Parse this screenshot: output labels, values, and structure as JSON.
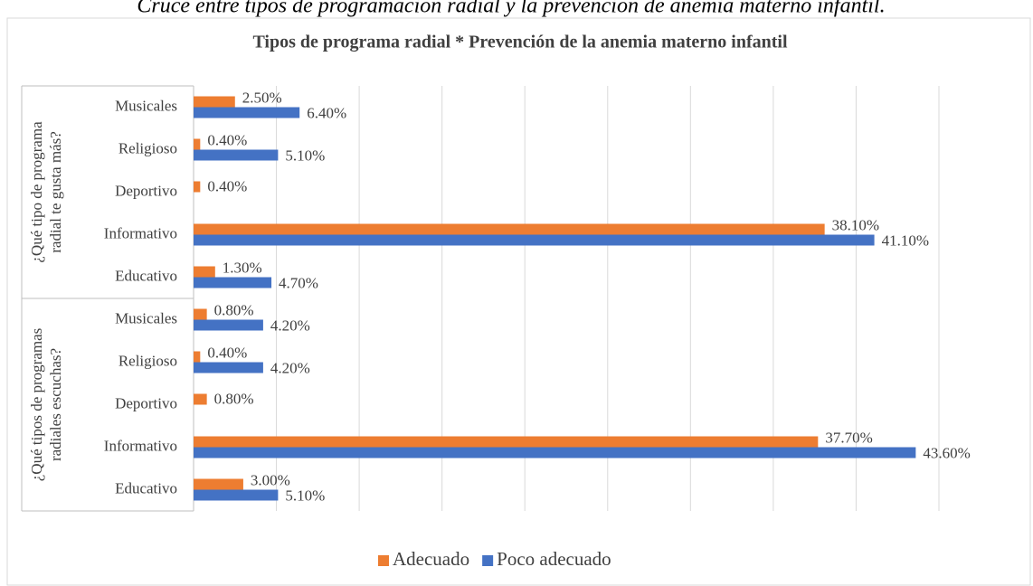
{
  "caption": "Cruce entre tipos de programación radial y la prevención de anemia materno infantil.",
  "chart_data": {
    "type": "bar",
    "title": "Tipos de programa radial * Prevención de la anemia materno infantil",
    "groups": [
      {
        "label_lines": [
          "¿Qué tipo de programa",
          "radial te gusta más?"
        ],
        "categories": [
          "Musicales",
          "Religioso",
          "Deportivo",
          "Informativo",
          "Educativo"
        ]
      },
      {
        "label_lines": [
          "¿Qué tipos de programas",
          "radiales escuchas?"
        ],
        "categories": [
          "Musicales",
          "Religioso",
          "Deportivo",
          "Informativo",
          "Educativo"
        ]
      }
    ],
    "series": [
      {
        "name": "Adecuado",
        "color": "#ed7d31",
        "values": [
          2.5,
          0.4,
          0.4,
          38.1,
          1.3,
          0.8,
          0.4,
          0.8,
          37.7,
          3.0
        ],
        "value_labels": [
          "2.50%",
          "0.40%",
          "0.40%",
          "38.10%",
          "1.30%",
          "0.80%",
          "0.40%",
          "0.80%",
          "37.70%",
          "3.00%"
        ]
      },
      {
        "name": "Poco adecuado",
        "color": "#4472c4",
        "values": [
          6.4,
          5.1,
          null,
          41.1,
          4.7,
          4.2,
          4.2,
          null,
          43.6,
          5.1
        ],
        "value_labels": [
          "6.40%",
          "5.10%",
          null,
          "41.10%",
          "4.70%",
          "4.20%",
          "4.20%",
          null,
          "43.60%",
          "5.10%"
        ]
      }
    ],
    "xlim": [
      0,
      45
    ],
    "xticks": [
      0,
      5,
      10,
      15,
      20,
      25,
      30,
      35,
      40,
      45
    ],
    "grid": true,
    "legend": "bottom"
  }
}
